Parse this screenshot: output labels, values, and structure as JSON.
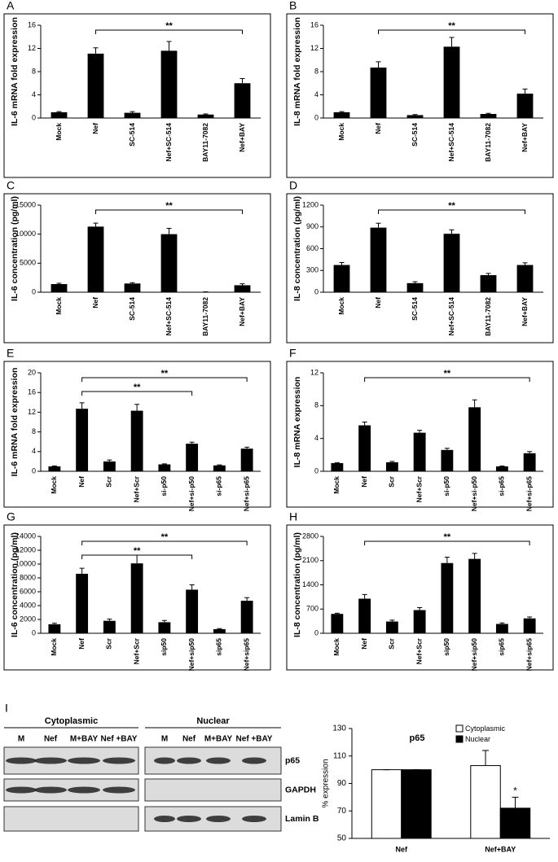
{
  "chart_data": [
    {
      "type": "bar",
      "label": "A",
      "ylabel": "IL-6 mRNA fold expression",
      "color": "#000000",
      "categories": [
        "Mock",
        "Nef",
        "SC-514",
        "Nef+SC-514",
        "BAY11-7082",
        "Nef+BAY"
      ],
      "values": [
        1.0,
        11.1,
        0.9,
        11.6,
        0.6,
        6.0
      ],
      "errors": [
        0.1,
        1.0,
        0.2,
        1.6,
        0.1,
        0.8
      ],
      "ylim": [
        0,
        16
      ],
      "yticks": [
        0,
        4,
        8,
        12,
        16
      ],
      "annotations": [
        {
          "text": "**",
          "from": "Nef",
          "to": "Nef+BAY"
        }
      ]
    },
    {
      "type": "bar",
      "label": "B",
      "ylabel": "IL-8 mRNA fold expression",
      "color": "#000000",
      "categories": [
        "Mock",
        "Nef",
        "SC-514",
        "Nef+SC-514",
        "BAY11-7082",
        "Nef+BAY"
      ],
      "values": [
        1.0,
        8.7,
        0.5,
        12.3,
        0.7,
        4.2
      ],
      "errors": [
        0.1,
        1.0,
        0.1,
        1.6,
        0.1,
        0.8
      ],
      "ylim": [
        0,
        16
      ],
      "yticks": [
        0,
        4,
        8,
        12,
        16
      ],
      "annotations": [
        {
          "text": "**",
          "from": "Nef",
          "to": "Nef+BAY"
        }
      ]
    },
    {
      "type": "bar",
      "label": "C",
      "ylabel": "IL-6 concentration (pg/ml)",
      "color": "#000000",
      "categories": [
        "Mock",
        "Nef",
        "SC-514",
        "Nef+SC-514",
        "BAY11-7082",
        "Nef+BAY"
      ],
      "values": [
        1400,
        11300,
        1500,
        10000,
        50,
        1200
      ],
      "errors": [
        150,
        600,
        150,
        1000,
        20,
        250
      ],
      "ylim": [
        0,
        15000
      ],
      "yticks": [
        0,
        5000,
        10000,
        15000
      ],
      "annotations": [
        {
          "text": "**",
          "from": "Nef",
          "to": "Nef+BAY"
        }
      ]
    },
    {
      "type": "bar",
      "label": "D",
      "ylabel": "IL-8 concentration (pg/ml)",
      "color": "#000000",
      "categories": [
        "Mock",
        "Nef",
        "SC-514",
        "Nef+SC-514",
        "BAY11-7082",
        "Nef+BAY"
      ],
      "values": [
        375,
        890,
        125,
        805,
        235,
        375
      ],
      "errors": [
        35,
        60,
        20,
        55,
        25,
        30
      ],
      "ylim": [
        0,
        1200
      ],
      "yticks": [
        0,
        300,
        600,
        900,
        1200
      ],
      "annotations": [
        {
          "text": "**",
          "from": "Nef",
          "to": "Nef+BAY"
        }
      ]
    },
    {
      "type": "bar",
      "label": "E",
      "ylabel": "IL-6 mRNA fold expression",
      "color": "#000000",
      "categories": [
        "Mock",
        "Nef",
        "Scr",
        "Nef+Scr",
        "si-p50",
        "Nef+si-p50",
        "si-p65",
        "Nef+si-p65"
      ],
      "values": [
        1.0,
        12.7,
        2.0,
        12.3,
        1.4,
        5.6,
        1.2,
        4.6
      ],
      "errors": [
        0.1,
        1.2,
        0.3,
        1.3,
        0.1,
        0.3,
        0.1,
        0.3
      ],
      "ylim": [
        0,
        20
      ],
      "yticks": [
        0,
        4,
        8,
        12,
        16,
        20
      ],
      "annotations": [
        {
          "text": "**",
          "from": "Nef",
          "to": "Nef+si-p65"
        },
        {
          "text": "**",
          "from": "Nef",
          "to": "Nef+si-p50"
        }
      ]
    },
    {
      "type": "bar",
      "label": "F",
      "ylabel": "IL-8 mRNA expression",
      "color": "#000000",
      "categories": [
        "Mock",
        "Nef",
        "Scr",
        "Nef+Scr",
        "si-p50",
        "Nef+si-p50",
        "si-p65",
        "Nef+si-p65"
      ],
      "values": [
        1.0,
        5.6,
        1.1,
        4.7,
        2.6,
        7.8,
        0.6,
        2.2
      ],
      "errors": [
        0.05,
        0.4,
        0.1,
        0.3,
        0.2,
        0.9,
        0.05,
        0.2
      ],
      "ylim": [
        0,
        12
      ],
      "yticks": [
        0,
        4,
        8,
        12
      ],
      "annotations": [
        {
          "text": "**",
          "from": "Nef",
          "to": "Nef+si-p65"
        }
      ]
    },
    {
      "type": "bar",
      "label": "G",
      "ylabel": "IL-6 concentration (pg/ml)",
      "color": "#000000",
      "categories": [
        "Mock",
        "Nef",
        "Scr",
        "Nef+Scr",
        "sip50",
        "Nef+sip50",
        "sip65",
        "Nef+sip65"
      ],
      "values": [
        1300,
        8600,
        1800,
        10100,
        1600,
        6300,
        600,
        4700
      ],
      "errors": [
        150,
        800,
        250,
        1200,
        250,
        700,
        80,
        450
      ],
      "ylim": [
        0,
        14000
      ],
      "yticks": [
        0,
        2000,
        4000,
        6000,
        8000,
        10000,
        12000,
        14000
      ],
      "annotations": [
        {
          "text": "**",
          "from": "Nef",
          "to": "Nef+sip65"
        },
        {
          "text": "**",
          "from": "Nef",
          "to": "Nef+sip50"
        }
      ]
    },
    {
      "type": "bar",
      "label": "H",
      "ylabel": "IL-8 concentration (pg/ml)",
      "color": "#000000",
      "categories": [
        "Mock",
        "Nef",
        "Scr",
        "Nef+Scr",
        "sip50",
        "Nef+sip50",
        "sip65",
        "Nef+sip65"
      ],
      "values": [
        560,
        1000,
        340,
        670,
        2030,
        2150,
        270,
        430
      ],
      "errors": [
        20,
        120,
        40,
        70,
        170,
        160,
        30,
        40
      ],
      "ylim": [
        0,
        2800
      ],
      "yticks": [
        0,
        700,
        1400,
        2100,
        2800
      ],
      "annotations": [
        {
          "text": "**",
          "from": "Nef",
          "to": "Nef+sip65"
        }
      ]
    },
    {
      "type": "grouped-bar",
      "label": "I",
      "title": "p65",
      "ylabel": "% expression",
      "categories": [
        "Nef",
        "Nef+BAY"
      ],
      "series": [
        {
          "name": "Cytoplasmic",
          "color": "#ffffff",
          "values": [
            100,
            103
          ],
          "errors": [
            0,
            11
          ]
        },
        {
          "name": "Nuclear",
          "color": "#000000",
          "values": [
            100,
            72
          ],
          "errors": [
            0,
            8
          ]
        }
      ],
      "ylim": [
        50,
        130
      ],
      "yticks": [
        50,
        70,
        90,
        110,
        130
      ],
      "legend": "top-right",
      "annotations": [
        {
          "text": "*",
          "category": "Nef+BAY",
          "series": "Nuclear"
        }
      ]
    }
  ],
  "blot": {
    "groups": [
      {
        "title": "Cytoplasmic",
        "lanes": [
          "M",
          "Nef",
          "M+BAY",
          "Nef +BAY"
        ]
      },
      {
        "title": "Nuclear",
        "lanes": [
          "M",
          "Nef",
          "M+BAY",
          "Nef +BAY"
        ]
      }
    ],
    "rows": [
      "p65",
      "GAPDH",
      "Lamin B"
    ]
  }
}
